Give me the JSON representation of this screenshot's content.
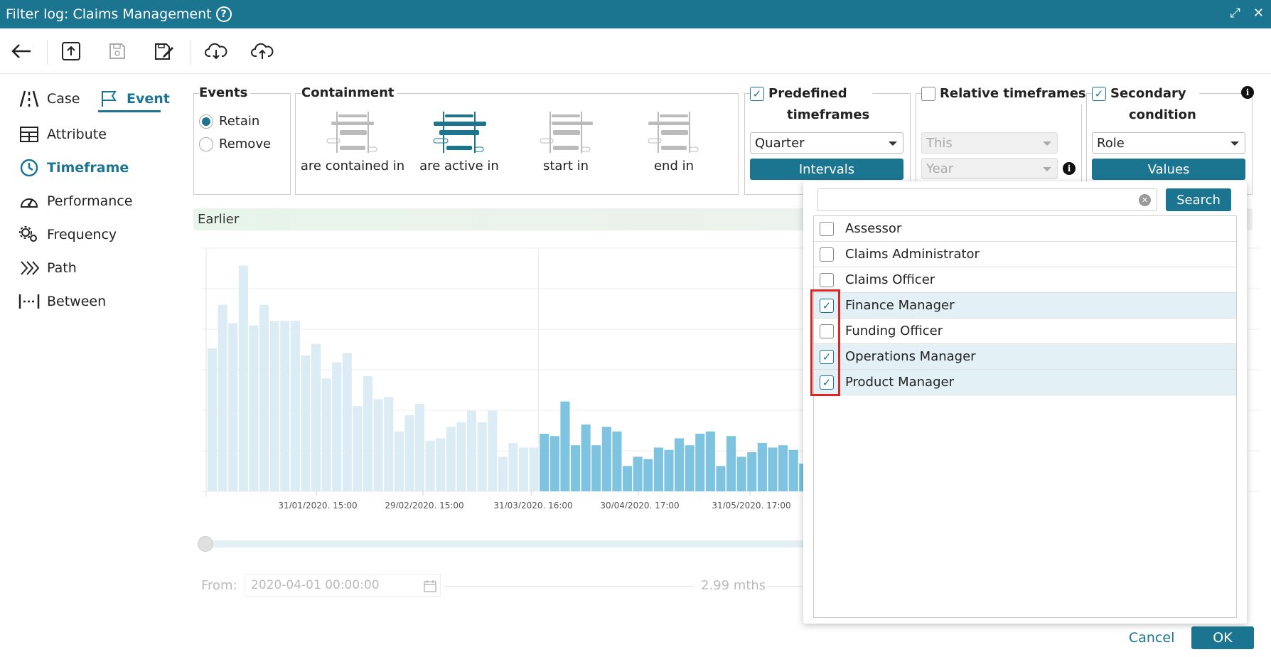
{
  "window": {
    "title": "Filter log: Claims Management",
    "help_icon": "?",
    "maximize_icon": "⤢",
    "close_icon": "✕"
  },
  "toolbar": {
    "icons": [
      "back-arrow-icon",
      "upload-icon",
      "save-icon",
      "save-as-icon",
      "cloud-download-icon",
      "cloud-upload-icon"
    ]
  },
  "sidebar": {
    "tabs": [
      {
        "label": "Case"
      },
      {
        "label": "Event"
      }
    ],
    "items": [
      {
        "label": "Attribute"
      },
      {
        "label": "Timeframe"
      },
      {
        "label": "Performance"
      },
      {
        "label": "Frequency"
      },
      {
        "label": "Path"
      },
      {
        "label": "Between"
      }
    ]
  },
  "events": {
    "title": "Events",
    "options": [
      "Retain",
      "Remove"
    ],
    "selected": "Retain"
  },
  "containment": {
    "title": "Containment",
    "options": [
      "are contained in",
      "are active in",
      "start in",
      "end in"
    ],
    "selected": "are active in"
  },
  "predefined": {
    "label_line1": "Predefined",
    "label_line2": "timeframes",
    "checked": true,
    "select_value": "Quarter",
    "button": "Intervals"
  },
  "relative": {
    "label": "Relative timeframes",
    "checked": false,
    "select1": "This",
    "select2": "Year"
  },
  "secondary": {
    "label_line1": "Secondary",
    "label_line2": "condition",
    "checked": true,
    "select_value": "Role",
    "button": "Values"
  },
  "timeline": {
    "earlier_label": "Earlier",
    "from_label": "From:",
    "from_value": "2020-04-01 00:00:00",
    "duration": "2.99 mths"
  },
  "chart_data": {
    "type": "bar",
    "x_tick_labels": [
      "31/01/2020, 15:00",
      "29/02/2020, 15:00",
      "31/03/2020, 16:00",
      "30/04/2020, 17:00",
      "31/05/2020, 17:00"
    ],
    "values": [
      62,
      81,
      73,
      98,
      72,
      81,
      74,
      74,
      74,
      59,
      64,
      49,
      56,
      60,
      37,
      50,
      40,
      41,
      26,
      33,
      38,
      22,
      23,
      28,
      30,
      35,
      30,
      35,
      15,
      21,
      19,
      19,
      25,
      24,
      39,
      20,
      29,
      20,
      28,
      26,
      11,
      15,
      14,
      19,
      18,
      23,
      20,
      25,
      26,
      11,
      24,
      15,
      17,
      21,
      19,
      20,
      18,
      12,
      16
    ],
    "highlight_start_index": 32,
    "colors": {
      "faded": "#dcecf4",
      "active": "#7ec3e0"
    }
  },
  "role_dropdown": {
    "search_value": "",
    "search_button": "Search",
    "clear_icon": "✕",
    "items": [
      {
        "label": "Assessor",
        "checked": false
      },
      {
        "label": "Claims Administrator",
        "checked": false
      },
      {
        "label": "Claims Officer",
        "checked": false
      },
      {
        "label": "Finance Manager",
        "checked": true
      },
      {
        "label": "Funding Officer",
        "checked": false
      },
      {
        "label": "Operations Manager",
        "checked": true
      },
      {
        "label": "Product Manager",
        "checked": true
      }
    ]
  },
  "footer": {
    "cancel": "Cancel",
    "ok": "OK"
  },
  "colors": {
    "accent": "#1b7591",
    "highlight_border": "#e32222",
    "selected_row": "#e3f1f7"
  }
}
